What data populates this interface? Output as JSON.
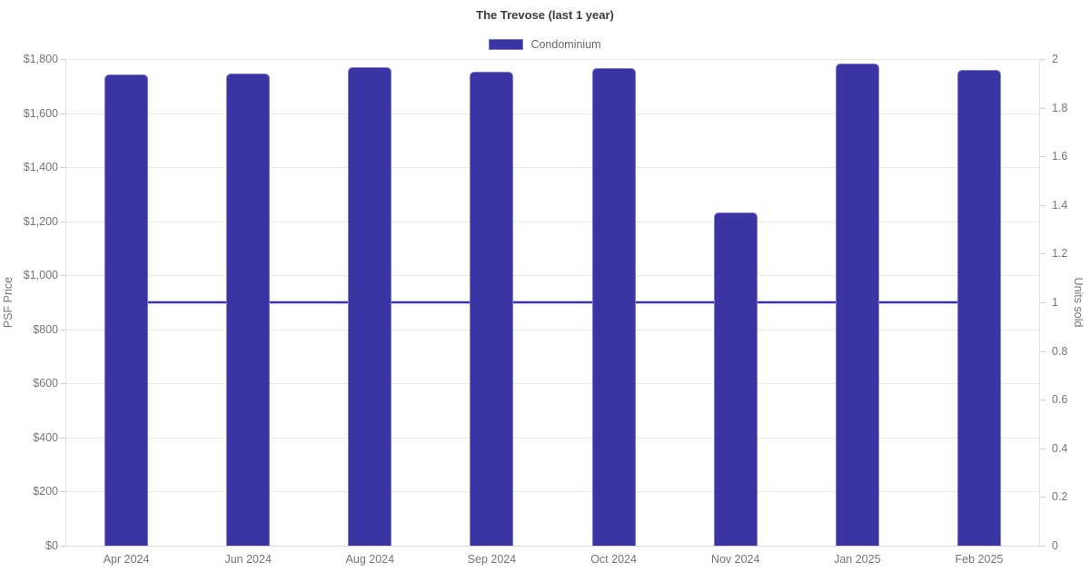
{
  "title": "The Trevose (last 1 year)",
  "legend": {
    "items": [
      {
        "label": "Condominium",
        "color": "#3b35a4",
        "border_color": "#7d78d2"
      }
    ]
  },
  "chart_data": {
    "type": "bar",
    "title": "The Trevose (last 1 year)",
    "categories": [
      "Apr 2024",
      "Jun 2024",
      "Aug 2024",
      "Sep 2024",
      "Oct 2024",
      "Nov 2024",
      "Jan 2025",
      "Feb 2025"
    ],
    "series": [
      {
        "name": "Condominium",
        "type": "bar",
        "axis": "left",
        "values": [
          1742,
          1746,
          1770,
          1753,
          1766,
          1231,
          1782,
          1759
        ]
      },
      {
        "name": "Units sold",
        "type": "line",
        "axis": "right",
        "values": [
          1,
          1,
          1,
          1,
          1,
          1,
          1,
          1
        ]
      }
    ],
    "left_axis": {
      "label": "PSF Price",
      "min": 0,
      "max": 1800,
      "step": 200,
      "prefix": "$"
    },
    "right_axis": {
      "label": "Units sold",
      "min": 0,
      "max": 2,
      "step": 0.2
    },
    "legend_position": "top",
    "grid": "horizontal-only",
    "colors": {
      "bar_fill": "#3b35a4",
      "bar_border": "#7d78d2",
      "line": "#3b35a4",
      "grid": "#e9e9e9",
      "axis_side": "#e4e4e4",
      "axis_bottom": "#d6d6d6",
      "tick_mark": "#cfcfcf",
      "tick_text": "#757575",
      "title_text": "#3b3b3b",
      "legend_text": "#666666"
    }
  }
}
